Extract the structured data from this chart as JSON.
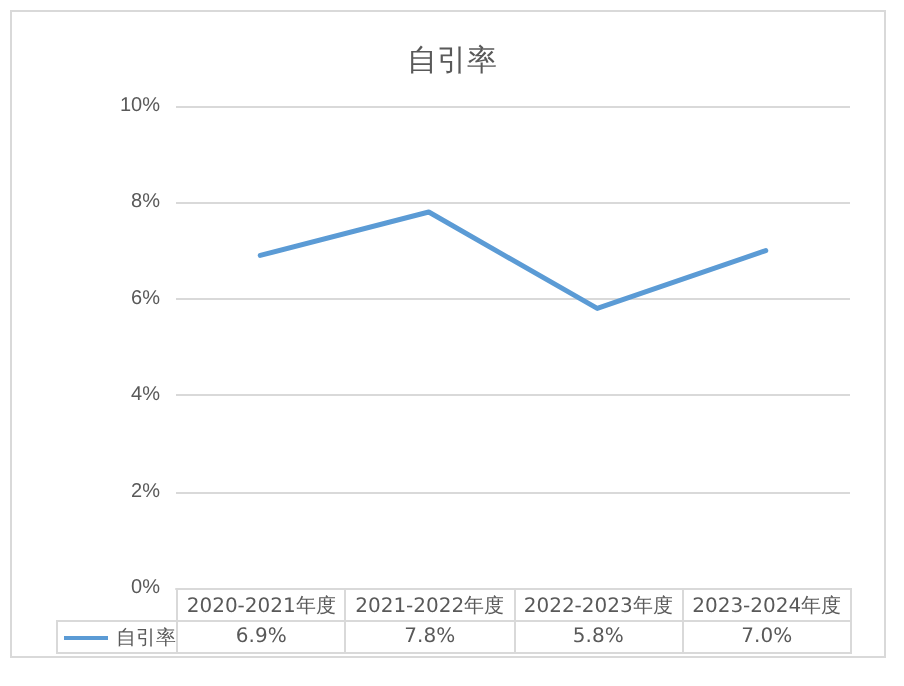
{
  "chart_data": {
    "type": "line",
    "title": "自引率",
    "categories": [
      "2020-2021年度",
      "2021-2022年度",
      "2022-2023年度",
      "2023-2024年度"
    ],
    "series": [
      {
        "name": "自引率",
        "color": "#5b9bd5",
        "values": [
          6.9,
          7.8,
          5.8,
          7.0
        ],
        "value_labels": [
          "6.9%",
          "7.8%",
          "5.8%",
          "7.0%"
        ]
      }
    ],
    "ylim": [
      0,
      10
    ],
    "yticks": [
      {
        "value": 0,
        "label": "0%"
      },
      {
        "value": 2,
        "label": "2%"
      },
      {
        "value": 4,
        "label": "4%"
      },
      {
        "value": 6,
        "label": "6%"
      },
      {
        "value": 8,
        "label": "8%"
      },
      {
        "value": 10,
        "label": "10%"
      }
    ],
    "grid": "y",
    "legend": "bottom",
    "marker": "none",
    "line_style": "solid"
  }
}
